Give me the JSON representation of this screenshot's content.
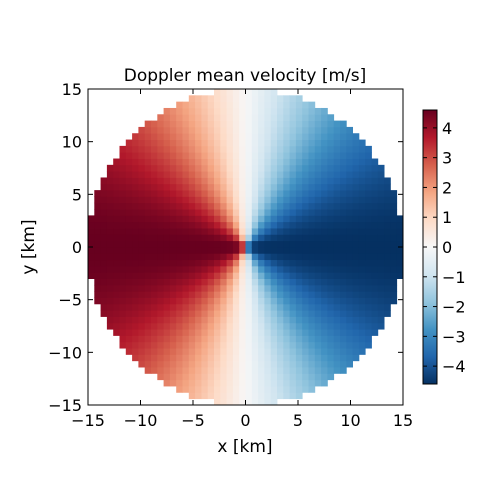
{
  "chart_data": {
    "type": "heatmap",
    "title": "Doppler mean velocity [m/s]",
    "xlabel": "x [km]",
    "ylabel": "y [km]",
    "xlim": [
      -15,
      15
    ],
    "ylim": [
      -15,
      15
    ],
    "x_ticks": [
      -15,
      -10,
      -5,
      0,
      5,
      10,
      15
    ],
    "y_ticks": [
      -15,
      -10,
      -5,
      0,
      5,
      10,
      15
    ],
    "x_tick_labels": [
      "−15",
      "−10",
      "−5",
      "0",
      "5",
      "10",
      "15"
    ],
    "y_tick_labels": [
      "−15",
      "−10",
      "−5",
      "0",
      "5",
      "10",
      "15"
    ],
    "field": {
      "description_formula": "v = -A * x / sqrt(x^2 + y^2), masked outside radius",
      "max_radius_km": 15,
      "grid_spacing_km": 0.6,
      "amplitude_mps": 4.6
    },
    "colormap": "RdBu",
    "colorbar": {
      "vmin": -4.6,
      "vmax": 4.6,
      "ticks": [
        4,
        3,
        2,
        1,
        0,
        -1,
        -2,
        -3,
        -4
      ],
      "tick_labels": [
        "4",
        "3",
        "2",
        "1",
        "0",
        "−1",
        "−2",
        "−3",
        "−4"
      ]
    },
    "grid": false,
    "legend": "none"
  }
}
